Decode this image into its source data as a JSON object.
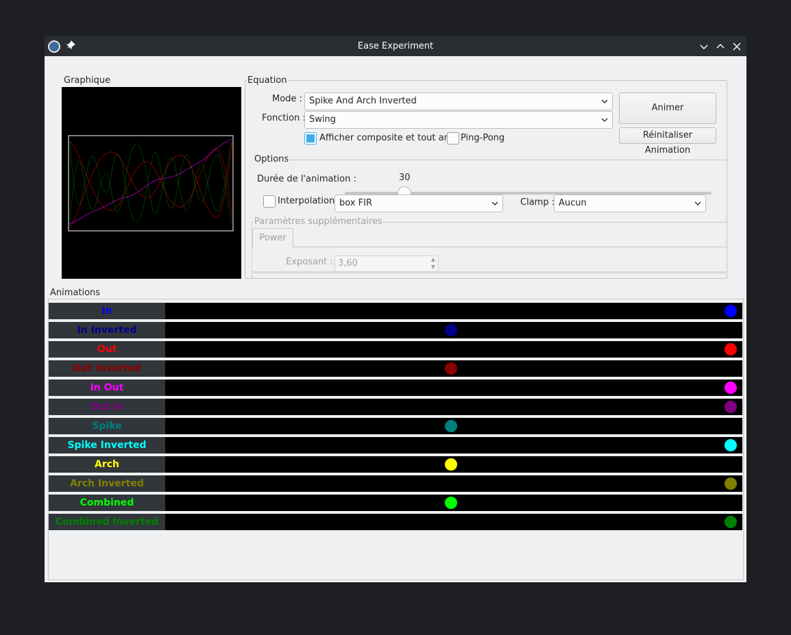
{
  "window": {
    "title": "Ease Experiment"
  },
  "graph_group": {
    "label": "Graphique"
  },
  "equation": {
    "label": "Equation",
    "mode_label": "Mode :",
    "mode_value": "Spike And Arch Inverted",
    "function_label": "Fonction :",
    "function_value": "Swing",
    "composite_checkbox_label": "Afficher composite et tout anim",
    "composite_checked": true,
    "pingpong_label": "Ping-Pong",
    "pingpong_checked": false,
    "animate_button": "Animer",
    "reset_button": "Réinitaliser Animation"
  },
  "options": {
    "label": "Options",
    "duration_label": "Durée de l'animation :",
    "duration_value": "30",
    "interpolation_label": "Interpolation",
    "interpolation_checked": false,
    "interpolation_value": "box FIR",
    "clamp_label": "Clamp :",
    "clamp_value": "Aucun",
    "extra_params_label": "Paramètres supplémentaires",
    "tab_label": "Power",
    "exponent_label": "Exposant :",
    "exponent_value": "3,60"
  },
  "animations": {
    "label": "Animations",
    "rows": [
      {
        "name": "In",
        "color": "#0000ff",
        "progress": 1.0
      },
      {
        "name": "In Inverted",
        "color": "#00008b",
        "progress": 0.5
      },
      {
        "name": "Out",
        "color": "#ff0000",
        "progress": 1.0
      },
      {
        "name": "Out Inverted",
        "color": "#8b0000",
        "progress": 0.5
      },
      {
        "name": "In Out",
        "color": "#ff00ff",
        "progress": 1.0
      },
      {
        "name": "Out In",
        "color": "#800080",
        "progress": 1.0
      },
      {
        "name": "Spike",
        "color": "#008080",
        "progress": 0.5
      },
      {
        "name": "Spike Inverted",
        "color": "#00ffff",
        "progress": 1.0
      },
      {
        "name": "Arch",
        "color": "#ffff00",
        "progress": 0.5
      },
      {
        "name": "Arch Inverted",
        "color": "#808000",
        "progress": 1.0
      },
      {
        "name": "Combined",
        "color": "#00ff00",
        "progress": 0.5
      },
      {
        "name": "Combined Inverted",
        "color": "#008000",
        "progress": 1.0
      }
    ]
  }
}
